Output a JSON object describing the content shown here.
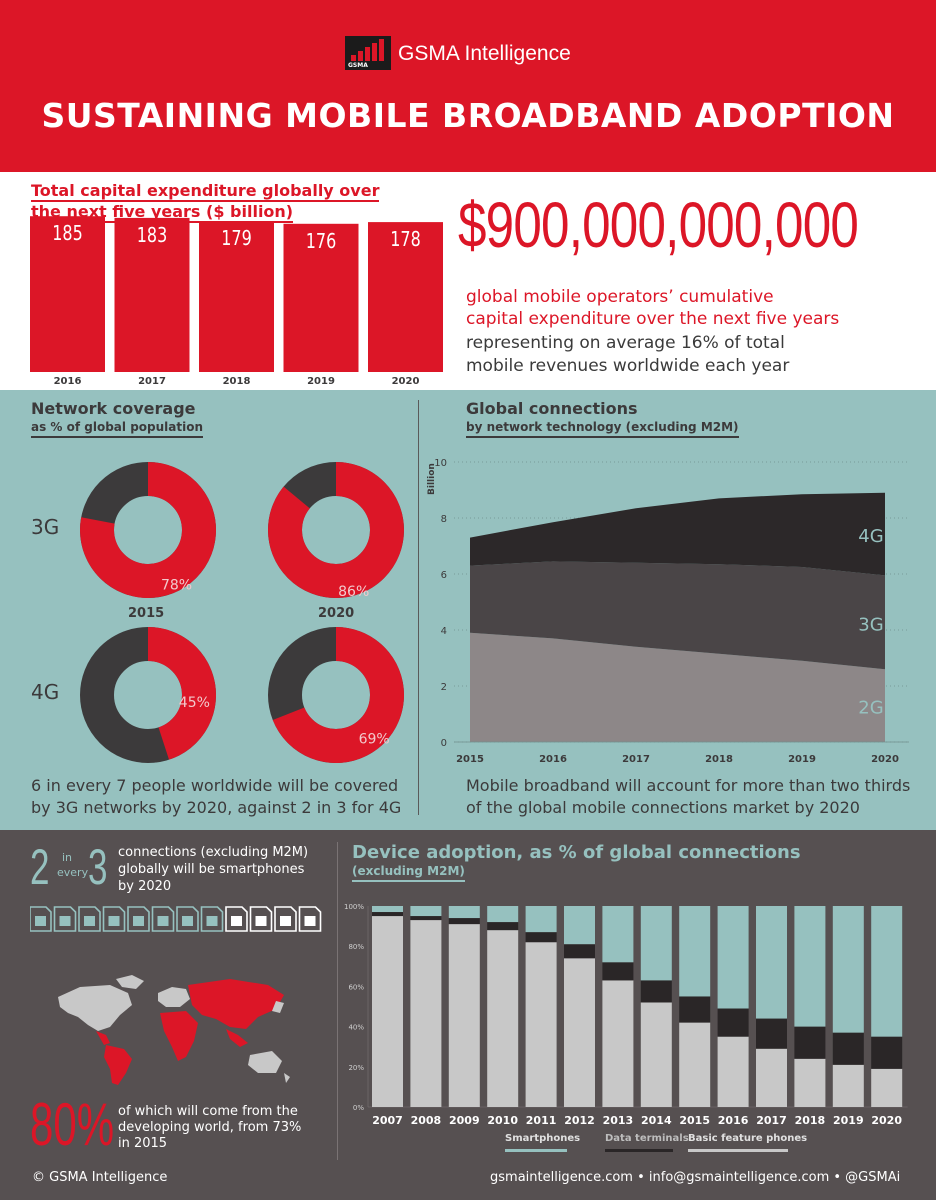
{
  "header": {
    "brand": "GSMA Intelligence",
    "logo_text": "GSMA",
    "title": "SUSTAINING MOBILE BROADBAND ADOPTION"
  },
  "capex": {
    "title_line1": "Total capital expenditure globally over",
    "title_line2": "the next five years ($ billion)",
    "big_number": "$900,000,000,000",
    "caption_line1": "global mobile operators’ cumulative",
    "caption_line2": "capital expenditure over the next five years",
    "caption_line3": "representing on average 16% of total",
    "caption_line4": "mobile revenues worldwide each year"
  },
  "coverage": {
    "title": "Network coverage",
    "subtitle": "as % of global population",
    "row_labels": [
      "3G",
      "4G"
    ],
    "year_labels": [
      "2015",
      "2020"
    ],
    "note_line1": "6 in every 7 people worldwide will be covered",
    "note_line2": "by 3G networks by 2020, against 2 in 3 for 4G"
  },
  "connections": {
    "title": "Global connections",
    "subtitle": "by network technology (excluding M2M)",
    "note_line1": "Mobile broadband will account for more than two thirds",
    "note_line2": "of the global mobile connections market by 2020"
  },
  "smartphones": {
    "num1": "2",
    "in": "in",
    "every": "every",
    "num2": "3",
    "note_line1": "connections (excluding M2M)",
    "note_line2": "globally will be smartphones",
    "note_line3": "by 2020",
    "pct": "80%",
    "dev_line1": "of which will come from the",
    "dev_line2": "developing world, from 73%",
    "dev_line3": "in 2015"
  },
  "device": {
    "title": "Device adoption, as % of global connections",
    "subtitle": "(excluding M2M)",
    "legend": [
      "Smartphones",
      "Data terminals",
      "Basic feature phones"
    ]
  },
  "colors": {
    "red": "#dc1627",
    "teal": "#96c1bf",
    "dark": "#3c3a3b",
    "grey": "#565051",
    "light_grey": "#c8c8c8"
  },
  "footer": {
    "copyright": "© GSMA Intelligence",
    "links": "gsmaintelligence.com • info@gsmaintelligence.com • @GSMAi"
  },
  "chart_data": [
    {
      "type": "bar",
      "title": "Total capital expenditure globally over the next five years ($ billion)",
      "categories": [
        "2016",
        "2017",
        "2018",
        "2019",
        "2020"
      ],
      "values": [
        185,
        183,
        179,
        176,
        178
      ]
    },
    {
      "type": "pie",
      "title": "Network coverage as % of global population",
      "series": [
        {
          "name": "3G",
          "categories": [
            "2015",
            "2020"
          ],
          "values": [
            78,
            86
          ]
        },
        {
          "name": "4G",
          "categories": [
            "2015",
            "2020"
          ],
          "values": [
            45,
            69
          ]
        }
      ]
    },
    {
      "type": "area",
      "title": "Global connections by network technology (excluding M2M)",
      "ylabel": "Billion",
      "x": [
        "2015",
        "2016",
        "2017",
        "2018",
        "2019",
        "2020"
      ],
      "ylim": [
        0,
        10
      ],
      "yticks": [
        0,
        2,
        4,
        6,
        8,
        10
      ],
      "series": [
        {
          "name": "2G",
          "values": [
            3.9,
            3.7,
            3.4,
            3.15,
            2.9,
            2.6
          ]
        },
        {
          "name": "3G",
          "values": [
            2.4,
            2.75,
            3.0,
            3.2,
            3.35,
            3.35
          ]
        },
        {
          "name": "4G",
          "values": [
            1.0,
            1.4,
            1.95,
            2.35,
            2.6,
            2.95
          ]
        }
      ]
    },
    {
      "type": "bar",
      "stacked": true,
      "title": "Device adoption, as % of global connections (excluding M2M)",
      "categories": [
        "2007",
        "2008",
        "2009",
        "2010",
        "2011",
        "2012",
        "2013",
        "2014",
        "2015",
        "2016",
        "2017",
        "2018",
        "2019",
        "2020"
      ],
      "ylim": [
        0,
        100
      ],
      "yticks": [
        "0%",
        "20%",
        "40%",
        "60%",
        "80%",
        "100%"
      ],
      "series": [
        {
          "name": "Basic feature phones",
          "values": [
            95,
            93,
            91,
            88,
            82,
            74,
            63,
            52,
            42,
            35,
            29,
            24,
            21,
            19
          ]
        },
        {
          "name": "Data terminals",
          "values": [
            2,
            2,
            3,
            4,
            5,
            7,
            9,
            11,
            13,
            14,
            15,
            16,
            16,
            16
          ]
        },
        {
          "name": "Smartphones",
          "values": [
            3,
            5,
            6,
            8,
            13,
            19,
            28,
            37,
            45,
            51,
            56,
            60,
            63,
            65
          ]
        }
      ]
    }
  ]
}
